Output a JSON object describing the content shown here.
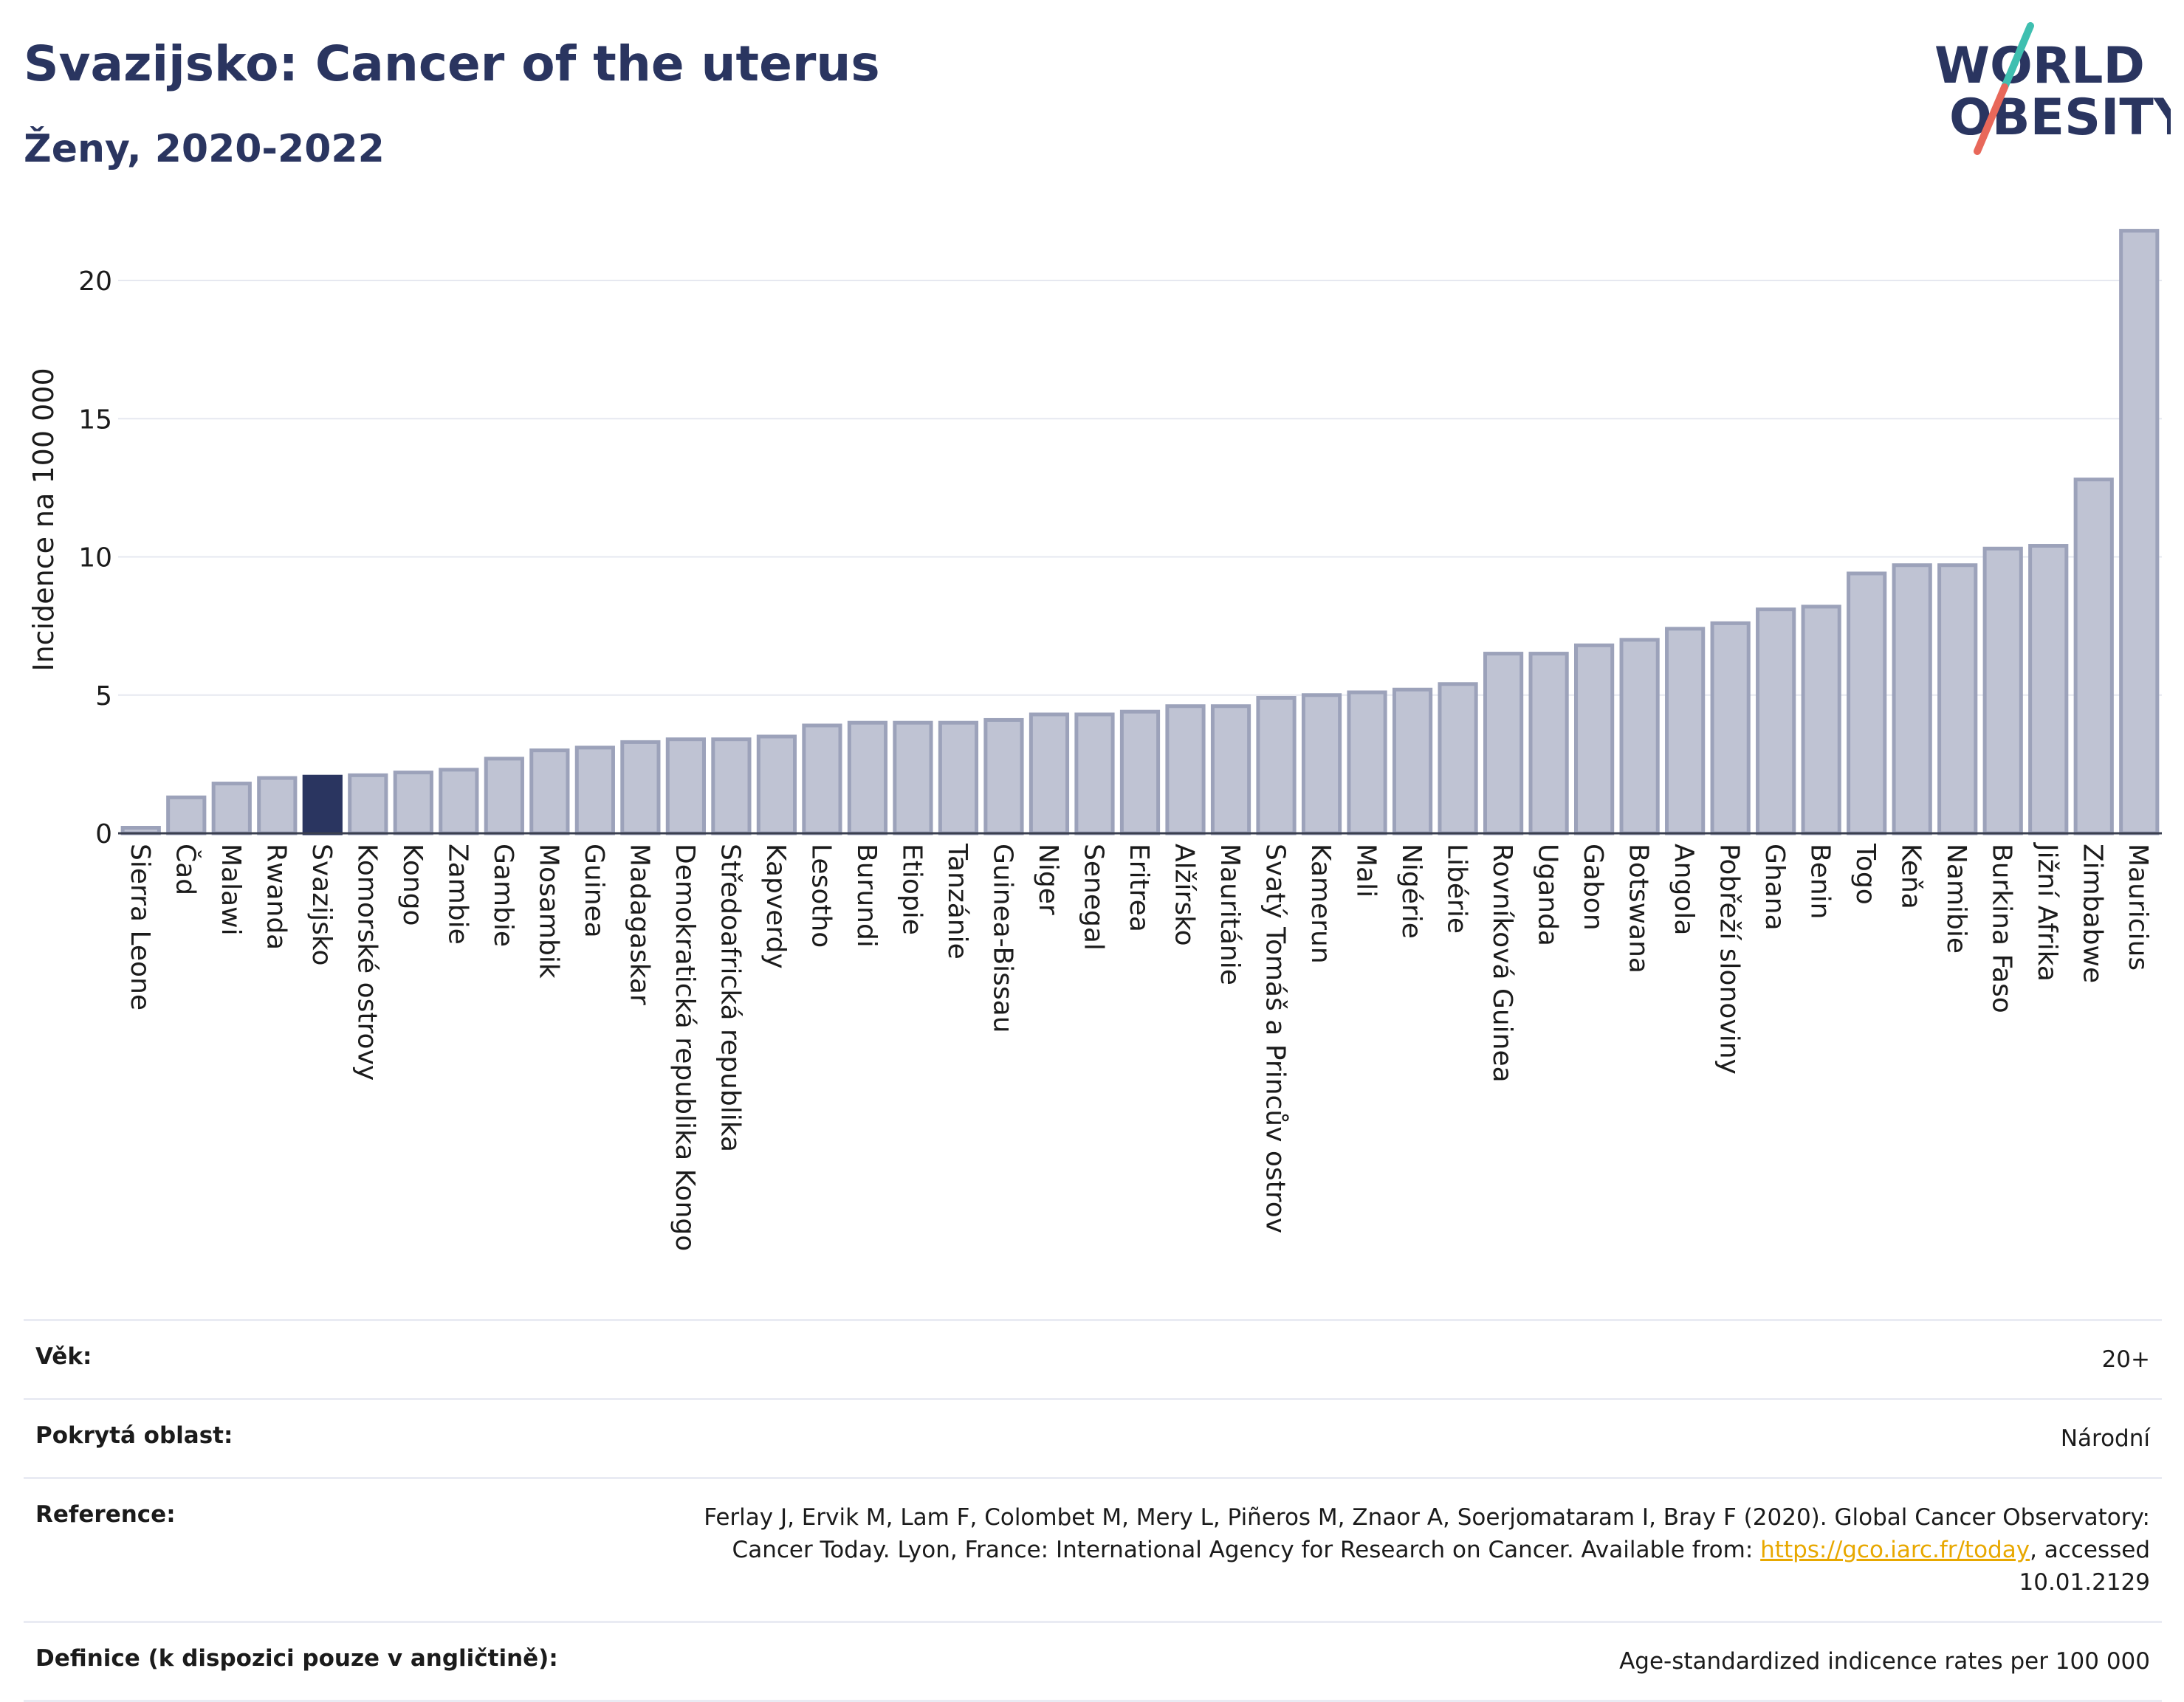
{
  "header": {
    "title": "Svazijsko: Cancer of the uterus",
    "subtitle": "Ženy, 2020-2022"
  },
  "logo": {
    "line1": "WORLD",
    "line2": "OBESITY",
    "colors": {
      "text": "#2a3560",
      "slash_top": "#3fbfb0",
      "slash_bottom": "#e8685a"
    }
  },
  "chart_data": {
    "type": "bar",
    "ylabel": "Incidence na 100 000",
    "ylim": [
      0,
      22
    ],
    "yticks": [
      0,
      5,
      10,
      15,
      20
    ],
    "grid": true,
    "highlight": "Svazijsko",
    "colors": {
      "bar": "#bfc3d3",
      "bar_border": "#9ca2ba",
      "highlight": "#2a3560",
      "grid": "#e6e8f0",
      "axis": "#3a3f4f"
    },
    "categories": [
      "Sierra Leone",
      "Čad",
      "Malawi",
      "Rwanda",
      "Svazijsko",
      "Komorské ostrovy",
      "Kongo",
      "Zambie",
      "Gambie",
      "Mosambik",
      "Guinea",
      "Madagaskar",
      "Demokratická republika Kongo",
      "Středoafrická republika",
      "Kapverdy",
      "Lesotho",
      "Burundi",
      "Etiopie",
      "Tanzánie",
      "Guinea-Bissau",
      "Niger",
      "Senegal",
      "Eritrea",
      "Alžírsko",
      "Mauritánie",
      "Svatý Tomáš a Princův ostrov",
      "Kamerun",
      "Mali",
      "Nigérie",
      "Libérie",
      "Rovníková Guinea",
      "Uganda",
      "Gabon",
      "Botswana",
      "Angola",
      "Pobřeží slonoviny",
      "Ghana",
      "Benin",
      "Togo",
      "Keňa",
      "Namibie",
      "Burkina Faso",
      "Jižní Afrika",
      "Zimbabwe",
      "Mauricius"
    ],
    "values": [
      0.2,
      1.3,
      1.8,
      2.0,
      2.05,
      2.1,
      2.2,
      2.3,
      2.7,
      3.0,
      3.1,
      3.3,
      3.4,
      3.4,
      3.5,
      3.9,
      4.0,
      4.0,
      4.0,
      4.1,
      4.3,
      4.3,
      4.4,
      4.6,
      4.6,
      4.9,
      5.0,
      5.1,
      5.2,
      5.4,
      6.5,
      6.5,
      6.8,
      7.0,
      7.4,
      7.6,
      8.1,
      8.2,
      9.4,
      9.7,
      9.7,
      10.3,
      10.4,
      12.8,
      21.8
    ]
  },
  "info": {
    "age_label": "Věk:",
    "age_value": "20+",
    "area_label": "Pokrytá oblast:",
    "area_value": "Národní",
    "ref_label": "Reference:",
    "ref_text_before": "Ferlay J, Ervik M, Lam F, Colombet M, Mery L, Piñeros M, Znaor A, Soerjomataram I, Bray F (2020). Global Cancer Observatory: Cancer Today. Lyon, France: International Agency for Research on Cancer. Available from: ",
    "ref_link": "https://gco.iarc.fr/today",
    "ref_text_after": ", accessed 10.01.2129",
    "def_label": "Definice (k dispozici pouze v angličtině):",
    "def_value": "Age-standardized indicence rates per 100 000"
  }
}
